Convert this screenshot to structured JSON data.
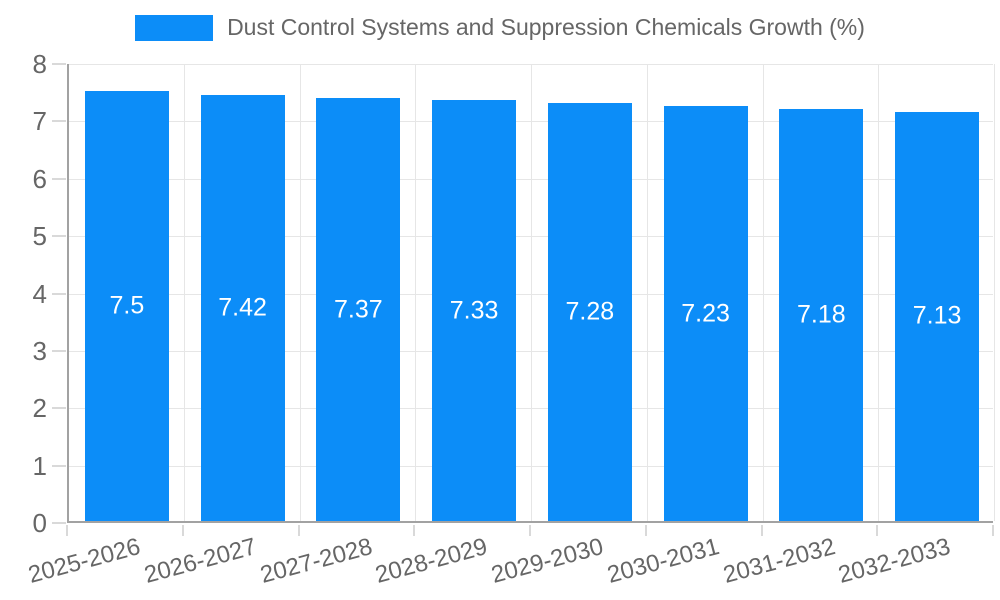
{
  "chart_data": {
    "type": "bar",
    "title": "Dust Control Systems and Suppression Chemicals Growth (%)",
    "categories": [
      "2025-2026",
      "2026-2027",
      "2027-2028",
      "2028-2029",
      "2029-2030",
      "2030-2031",
      "2031-2032",
      "2032-2033"
    ],
    "values": [
      7.5,
      7.42,
      7.37,
      7.33,
      7.28,
      7.23,
      7.18,
      7.13
    ],
    "value_labels": [
      "7.5",
      "7.42",
      "7.37",
      "7.33",
      "7.28",
      "7.23",
      "7.18",
      "7.13"
    ],
    "xlabel": "",
    "ylabel": "",
    "ylim": [
      0,
      8
    ],
    "yticks": [
      0,
      1,
      2,
      3,
      4,
      5,
      6,
      7,
      8
    ],
    "grid": true,
    "legend_position": "top",
    "legend_label": "Dust Control Systems and Suppression Chemicals Growth (%)",
    "colors": {
      "bar": "#0c8df8",
      "value_text": "#ffffff",
      "tick_text": "#666666",
      "legend_text": "#666666",
      "axis_line": "#a2a2a2",
      "gridline": "#e6e6e6",
      "tick_mark": "#d9d9d9",
      "background": "#ffffff"
    }
  }
}
